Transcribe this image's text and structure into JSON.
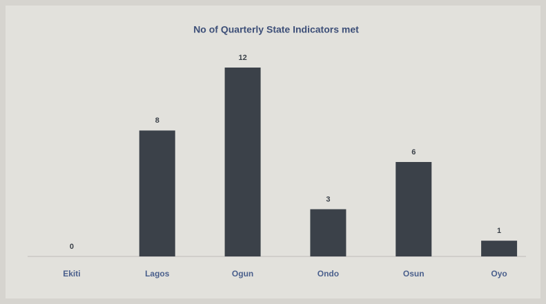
{
  "chart_data": {
    "type": "bar",
    "title": "No of Quarterly State Indicators met",
    "categories": [
      "Ekiti",
      "Lagos",
      "Ogun",
      "Ondo",
      "Osun",
      "Oyo"
    ],
    "values": [
      0,
      8,
      12,
      3,
      6,
      1
    ],
    "color": "#3b4149",
    "ylim": [
      0,
      12
    ]
  }
}
